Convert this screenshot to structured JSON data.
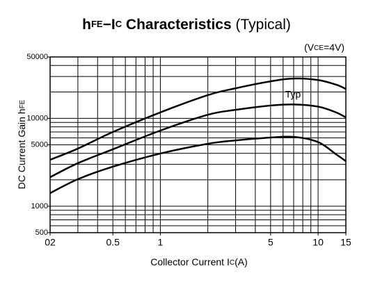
{
  "chart_data": {
    "type": "line",
    "title": [
      "h",
      "FE",
      "−I",
      "C",
      " Characteristics",
      " (Typical)"
    ],
    "annotation": [
      "(V",
      "CE",
      "=4V)"
    ],
    "curve_label": "Typ",
    "xlabel": [
      "Collector Current I",
      "C",
      "(A)"
    ],
    "ylabel": [
      "DC Current Gain h",
      "FE"
    ],
    "x": [
      0.2,
      0.3,
      0.5,
      1,
      2,
      3,
      5,
      7,
      10,
      13,
      15
    ],
    "series": [
      {
        "color": "#000000",
        "values": [
          3380,
          4530,
          7000,
          11700,
          18400,
          22000,
          26400,
          28400,
          27300,
          24200,
          21600
        ]
      },
      {
        "color": "#000000",
        "values": [
          2140,
          3090,
          4450,
          7260,
          11000,
          12500,
          14000,
          14400,
          13600,
          11700,
          10250
        ]
      },
      {
        "color": "#000000",
        "values": [
          1410,
          2030,
          2820,
          3980,
          5140,
          5620,
          6050,
          6160,
          5370,
          3900,
          3260
        ]
      }
    ],
    "log_x": true,
    "log_y": true,
    "xlim": [
      0.2,
      15
    ],
    "ylim": [
      500,
      50000
    ],
    "xticks": [
      {
        "value": 0.2,
        "label": "02"
      },
      0.5,
      1,
      5,
      10,
      15
    ],
    "yticks": [
      500,
      1000,
      5000,
      10000,
      50000
    ],
    "grid": true,
    "xgrid": [
      0.3,
      0.4,
      0.5,
      0.6,
      0.7,
      0.8,
      0.9,
      1,
      2,
      3,
      4,
      5,
      6,
      7,
      8,
      9,
      10
    ],
    "ygrid": [
      600,
      700,
      800,
      900,
      1000,
      2000,
      3000,
      4000,
      5000,
      6000,
      7000,
      8000,
      9000,
      10000,
      20000,
      30000,
      40000
    ]
  }
}
